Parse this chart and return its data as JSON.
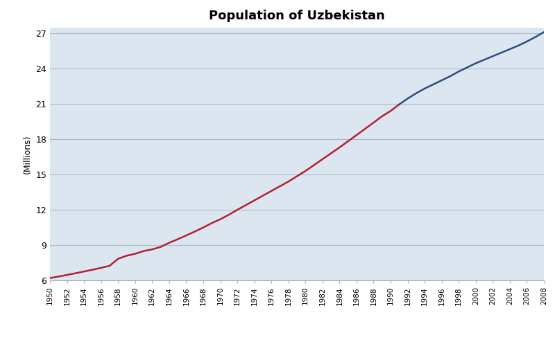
{
  "title": "Population of Uzbekistan",
  "ylabel": "(Millions)",
  "xlim": [
    1950,
    2008
  ],
  "ylim": [
    6,
    27.5
  ],
  "yticks": [
    6,
    9,
    12,
    15,
    18,
    21,
    24,
    27
  ],
  "xticks": [
    1950,
    1952,
    1954,
    1956,
    1958,
    1960,
    1962,
    1964,
    1966,
    1968,
    1970,
    1972,
    1974,
    1976,
    1978,
    1980,
    1982,
    1984,
    1986,
    1988,
    1990,
    1992,
    1994,
    1996,
    1998,
    2000,
    2002,
    2004,
    2006,
    2008
  ],
  "background_color": "#dce6f1",
  "grid_color": "#b0b8c8",
  "color_red": "#b22030",
  "color_blue": "#2e4d7b",
  "color_switch_year": 1991,
  "data": [
    [
      1950,
      6.2
    ],
    [
      1951,
      6.33
    ],
    [
      1952,
      6.47
    ],
    [
      1953,
      6.61
    ],
    [
      1954,
      6.76
    ],
    [
      1955,
      6.91
    ],
    [
      1956,
      7.07
    ],
    [
      1957,
      7.24
    ],
    [
      1958,
      7.84
    ],
    [
      1959,
      8.1
    ],
    [
      1960,
      8.26
    ],
    [
      1961,
      8.5
    ],
    [
      1962,
      8.64
    ],
    [
      1963,
      8.85
    ],
    [
      1964,
      9.2
    ],
    [
      1965,
      9.5
    ],
    [
      1966,
      9.82
    ],
    [
      1967,
      10.15
    ],
    [
      1968,
      10.5
    ],
    [
      1969,
      10.87
    ],
    [
      1970,
      11.2
    ],
    [
      1971,
      11.58
    ],
    [
      1972,
      12.0
    ],
    [
      1973,
      12.4
    ],
    [
      1974,
      12.8
    ],
    [
      1975,
      13.2
    ],
    [
      1976,
      13.6
    ],
    [
      1977,
      14.0
    ],
    [
      1978,
      14.4
    ],
    [
      1979,
      14.85
    ],
    [
      1980,
      15.3
    ],
    [
      1981,
      15.8
    ],
    [
      1982,
      16.3
    ],
    [
      1983,
      16.8
    ],
    [
      1984,
      17.3
    ],
    [
      1985,
      17.82
    ],
    [
      1986,
      18.35
    ],
    [
      1987,
      18.88
    ],
    [
      1988,
      19.41
    ],
    [
      1989,
      19.95
    ],
    [
      1990,
      20.4
    ],
    [
      1991,
      20.95
    ],
    [
      1992,
      21.45
    ],
    [
      1993,
      21.9
    ],
    [
      1994,
      22.3
    ],
    [
      1995,
      22.65
    ],
    [
      1996,
      23.0
    ],
    [
      1997,
      23.35
    ],
    [
      1998,
      23.75
    ],
    [
      1999,
      24.1
    ],
    [
      2000,
      24.45
    ],
    [
      2001,
      24.75
    ],
    [
      2002,
      25.05
    ],
    [
      2003,
      25.35
    ],
    [
      2004,
      25.65
    ],
    [
      2005,
      25.95
    ],
    [
      2006,
      26.3
    ],
    [
      2007,
      26.68
    ],
    [
      2008,
      27.1
    ]
  ]
}
